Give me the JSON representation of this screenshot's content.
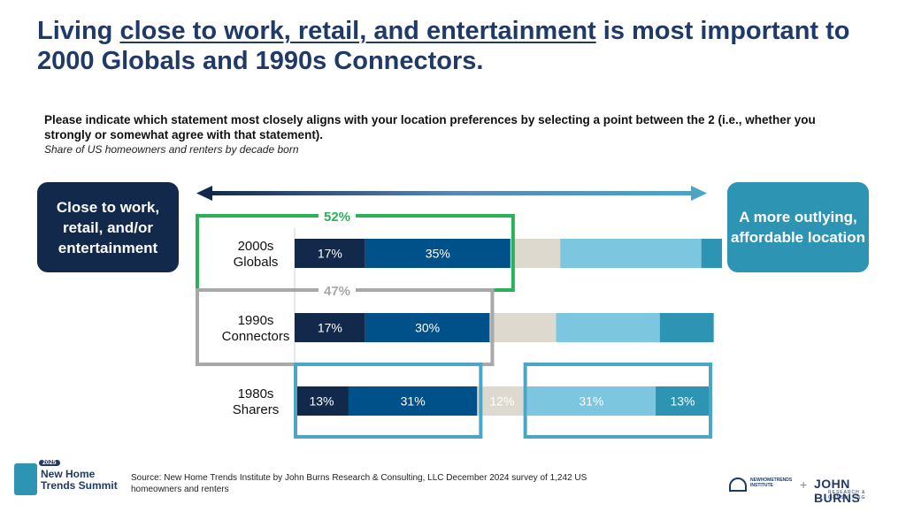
{
  "title": {
    "pre": "Living ",
    "highlight": "close to work, retail, and entertainment",
    "post": " is most important to 2000 Globals and 1990s Connectors."
  },
  "question": "Please indicate which statement most closely aligns with your location preferences by selecting a point between the 2 (i.e., whether you strongly or somewhat agree with that statement).",
  "subtitle": "Share of US homeowners and renters by decade born",
  "left_label": "Close to work, retail, and/or entertainment",
  "right_label": "A more outlying, affordable location",
  "source": "Source: New Home Trends Institute by John Burns Research & Consulting, LLC December 2024 survey of 1,242 US homeowners and renters",
  "logo_left": {
    "year": "2025",
    "name": "New Home Trends Summit"
  },
  "logo_right": {
    "nhti": "NEWHOMETRENDS INSTITUTE",
    "plus": "+",
    "jb": "JOHN BURNS",
    "jb_sub": "RESEARCH & CONSULTING"
  },
  "colors": {
    "strong_close": "#13294b",
    "somewhat_close": "#00508a",
    "neutral": "#ddd9cf",
    "somewhat_far": "#7cc6e0",
    "strong_far": "#2e94b3",
    "green": "#2bb15a",
    "gray": "#a8a8a8",
    "teal_box": "#4aa6c4"
  },
  "chart_data": {
    "type": "bar",
    "stacked": true,
    "orientation": "horizontal",
    "categories": [
      "2000s Globals",
      "1990s Connectors",
      "1980s Sharers"
    ],
    "series": [
      {
        "values": [
          17,
          17,
          13
        ]
      },
      {
        "values": [
          35,
          30,
          31
        ]
      },
      {
        "values": [
          12,
          16,
          12
        ]
      },
      {
        "values": [
          34,
          25,
          31
        ]
      },
      {
        "values": [
          5,
          13,
          13
        ]
      }
    ],
    "printed_series": [
      0,
      1
    ],
    "printed_rows_all": [
      2
    ],
    "totals": [
      {
        "label": "52%",
        "color": "green"
      },
      {
        "label": "47%",
        "color": "gray"
      }
    ],
    "category_lines": [
      [
        "2000s",
        "Globals"
      ],
      [
        "1990s",
        "Connectors"
      ],
      [
        "1980s",
        "Sharers"
      ]
    ],
    "xlim": [
      0,
      100
    ],
    "legend": "none"
  }
}
